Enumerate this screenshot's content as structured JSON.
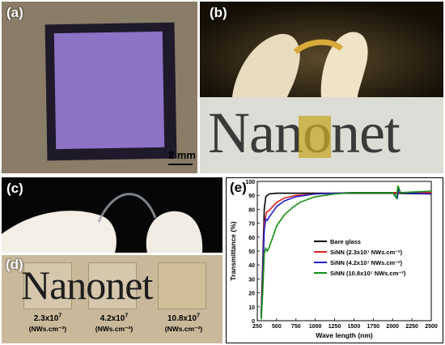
{
  "panels": {
    "a": {
      "label": "(a)",
      "scale_bar": "2 mm"
    },
    "b": {
      "label": "(b)",
      "word": "Nanonet"
    },
    "c": {
      "label": "(c)"
    },
    "d": {
      "label": "(d)",
      "word": "Nanonet",
      "samples": [
        {
          "density": "2.3x10",
          "exp": "7",
          "unit": "(NWs.cm⁻²)"
        },
        {
          "density": "4.2x10",
          "exp": "7",
          "unit": "(NWs.cm⁻²)"
        },
        {
          "density": "10.8x10",
          "exp": "7",
          "unit": "(NWs.cm⁻²)"
        }
      ]
    },
    "e": {
      "label": "(e)"
    }
  },
  "colors": {
    "film": "#8c73c6",
    "patch": "#c8a828",
    "bare": "#000000",
    "s1": "#e02020",
    "s2": "#2020d0",
    "s3": "#109010"
  },
  "chart_data": {
    "type": "line",
    "title": "",
    "xlabel": "Wave length (nm)",
    "ylabel": "Transmittance (%)",
    "xlim": [
      250,
      2500
    ],
    "ylim": [
      0,
      100
    ],
    "xticks": [
      250,
      500,
      750,
      1000,
      1250,
      1500,
      1750,
      2000,
      2250,
      2500
    ],
    "yticks": [
      0,
      10,
      20,
      30,
      40,
      50,
      60,
      70,
      80,
      90,
      100
    ],
    "legend_position": "center-right",
    "series": [
      {
        "name": "Bare glass",
        "color": "#000000",
        "x": [
          300,
          320,
          340,
          360,
          400,
          500,
          750,
          1000,
          1500,
          2000,
          2500
        ],
        "y": [
          5,
          40,
          80,
          89,
          91,
          91.5,
          91.5,
          91.5,
          91.5,
          91.5,
          91
        ]
      },
      {
        "name": "SiNN (2.3x10⁷ NWs.cm⁻²)",
        "color": "#e02020",
        "x": [
          300,
          320,
          340,
          370,
          400,
          450,
          500,
          600,
          750,
          1000,
          1500,
          2000,
          2500
        ],
        "y": [
          2,
          30,
          70,
          78,
          79,
          82,
          85,
          88,
          90,
          91,
          92,
          92,
          92
        ]
      },
      {
        "name": "SiNN (4.2x10⁷ NWs.cm⁻²)",
        "color": "#2020d0",
        "x": [
          300,
          320,
          340,
          360,
          380,
          400,
          450,
          500,
          600,
          750,
          1000,
          1500,
          2000,
          2060,
          2080,
          2100,
          2500
        ],
        "y": [
          2,
          25,
          65,
          73,
          72,
          74,
          78,
          82,
          86,
          89,
          91,
          92,
          92,
          88,
          95,
          92,
          91
        ]
      },
      {
        "name": "SiNN (10.8x10⁷ NWs.cm⁻²)",
        "color": "#109010",
        "x": [
          300,
          320,
          340,
          360,
          380,
          400,
          450,
          500,
          600,
          700,
          800,
          1000,
          1250,
          1500,
          2000,
          2050,
          2070,
          2100,
          2500
        ],
        "y": [
          1,
          20,
          48,
          52,
          50,
          52,
          60,
          68,
          76,
          81,
          85,
          89,
          91,
          92,
          92,
          88,
          97,
          92,
          93
        ]
      }
    ]
  }
}
